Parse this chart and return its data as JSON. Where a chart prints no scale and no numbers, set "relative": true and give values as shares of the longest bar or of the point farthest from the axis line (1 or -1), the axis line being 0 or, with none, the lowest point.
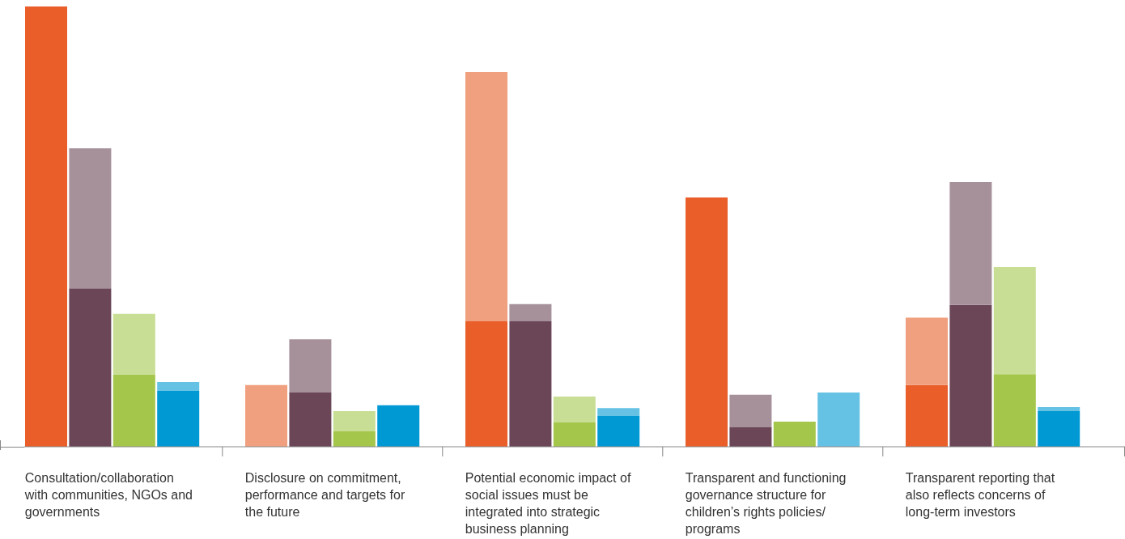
{
  "chart_data": {
    "type": "bar",
    "relative": true,
    "stacked": true,
    "grid": false,
    "legend": false,
    "categories": [
      null,
      "Consultation/collaboration with communities, NGOs and governments",
      null,
      null,
      null,
      null,
      "Disclosure on commitment, performance and targets for the future",
      null,
      null,
      null,
      null,
      "Potential economic impact of social issues must be integrated into strategic business planning",
      null,
      null,
      null,
      null,
      "Transparent and functioning governance structure for children’s rights policies/ programs",
      null,
      null,
      null,
      null,
      "Transparent reporting that also reflects concerns of long-term investors",
      null,
      null,
      null
    ],
    "series": [
      {
        "values": [
          1,
          0.36,
          0.164,
          0.127,
          null,
          0,
          0.123,
          0.035,
          0.094,
          null,
          0.285,
          0.285,
          0.055,
          0.07,
          null,
          0.566,
          0.044,
          0.057,
          0,
          null,
          0.14,
          0.322,
          0.165,
          0.081,
          null
        ],
        "colors": [
          "#e95e29",
          "#6b4657",
          "#a4c64a",
          "#0099d4",
          null,
          "#e95e29",
          "#6b4657",
          "#a4c64a",
          "#0099d4",
          null,
          "#e95e29",
          "#6b4657",
          "#a4c64a",
          "#0099d4",
          null,
          "#e95e29",
          "#6b4657",
          "#a4c64a",
          "#0099d4",
          null,
          "#e95e29",
          "#6b4657",
          "#a4c64a",
          "#0099d4",
          null
        ]
      },
      {
        "values": [
          0,
          0.318,
          0.138,
          0.02,
          null,
          0.14,
          0.121,
          0.046,
          0,
          null,
          0.566,
          0.039,
          0.059,
          0.018,
          null,
          0,
          0.074,
          0,
          0.123,
          null,
          0.153,
          0.279,
          0.243,
          0.009,
          null
        ],
        "colors": [
          "#f0a07e",
          "#a6919a",
          "#c8de94",
          "#66c2e4",
          null,
          "#f0a07e",
          "#a6919a",
          "#c8de94",
          "#66c2e4",
          null,
          "#f0a07e",
          "#a6919a",
          "#c8de94",
          "#66c2e4",
          null,
          "#f0a07e",
          "#a6919a",
          "#c8de94",
          "#66c2e4",
          null,
          "#f0a07e",
          "#a6919a",
          "#c8de94",
          "#66c2e4",
          null
        ]
      }
    ]
  }
}
